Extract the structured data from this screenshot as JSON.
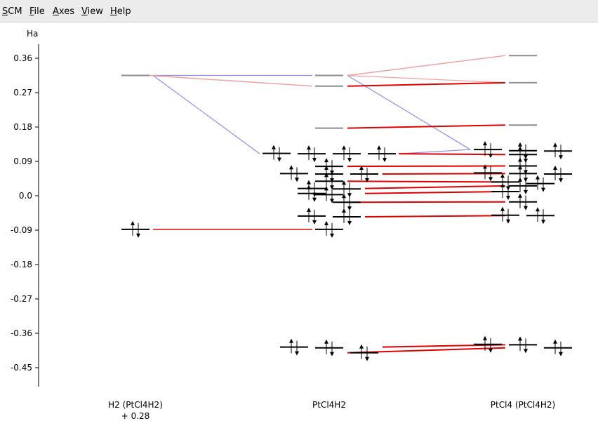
{
  "menu": {
    "items": [
      "SCM",
      "File",
      "Axes",
      "View",
      "Help"
    ]
  },
  "colors": {
    "energy_line": "#000000",
    "gray_line": "#8c8c8c",
    "red_line": "#e00000",
    "pink_line": "#f2a0a0",
    "blue_line": "#8c8cf0"
  },
  "chart_data": {
    "type": "energy-level diagram",
    "ylabel": "Ha",
    "y_ticks": [
      "0.36",
      "0.27",
      "0.18",
      "0.09",
      "0.0",
      "-0.09",
      "-0.18",
      "-0.27",
      "-0.36",
      "-0.45"
    ],
    "ylim": [
      -0.5,
      0.43
    ],
    "columns": [
      {
        "label": "H2 (PtCl4H2)",
        "sublabel": "+ 0.28"
      },
      {
        "label": "PtCl4H2",
        "sublabel": ""
      },
      {
        "label": "PtCl4 (PtCl4H2)",
        "sublabel": ""
      }
    ],
    "levels": {
      "h2": [
        {
          "e": 0.315,
          "occ": 0
        },
        {
          "e": -0.088,
          "occ": 2
        }
      ],
      "pt_complex": [
        {
          "e": 0.315,
          "occ": 0
        },
        {
          "e": 0.287,
          "occ": 0
        },
        {
          "e": 0.177,
          "occ": 0
        },
        {
          "e": 0.111,
          "occ": 2
        },
        {
          "e": 0.11,
          "occ": 2
        },
        {
          "e": 0.11,
          "occ": 2
        },
        {
          "e": 0.11,
          "occ": 2
        },
        {
          "e": 0.077,
          "occ": 2
        },
        {
          "e": 0.058,
          "occ": 2
        },
        {
          "e": 0.057,
          "occ": 2
        },
        {
          "e": 0.057,
          "occ": 2
        },
        {
          "e": 0.038,
          "occ": 2
        },
        {
          "e": 0.019,
          "occ": 2
        },
        {
          "e": 0.018,
          "occ": 2
        },
        {
          "e": 0.006,
          "occ": 2
        },
        {
          "e": 0.003,
          "occ": 2
        },
        {
          "e": -0.017,
          "occ": 2
        },
        {
          "e": -0.053,
          "occ": 2
        },
        {
          "e": -0.055,
          "occ": 2
        },
        {
          "e": -0.088,
          "occ": 2
        },
        {
          "e": -0.396,
          "occ": 2
        },
        {
          "e": -0.398,
          "occ": 2
        },
        {
          "e": -0.411,
          "occ": 2
        }
      ],
      "ptcl4": [
        {
          "e": 0.367,
          "occ": 0
        },
        {
          "e": 0.296,
          "occ": 0
        },
        {
          "e": 0.185,
          "occ": 0
        },
        {
          "e": 0.121,
          "occ": 2
        },
        {
          "e": 0.118,
          "occ": 2
        },
        {
          "e": 0.117,
          "occ": 2
        },
        {
          "e": 0.108,
          "occ": 2
        },
        {
          "e": 0.078,
          "occ": 2
        },
        {
          "e": 0.06,
          "occ": 2
        },
        {
          "e": 0.058,
          "occ": 2
        },
        {
          "e": 0.057,
          "occ": 2
        },
        {
          "e": 0.036,
          "occ": 2
        },
        {
          "e": 0.032,
          "occ": 2
        },
        {
          "e": 0.026,
          "occ": 2
        },
        {
          "e": 0.011,
          "occ": 2
        },
        {
          "e": -0.016,
          "occ": 2
        },
        {
          "e": -0.051,
          "occ": 2
        },
        {
          "e": -0.052,
          "occ": 2
        },
        {
          "e": -0.389,
          "occ": 2
        },
        {
          "e": -0.39,
          "occ": 2
        },
        {
          "e": -0.398,
          "occ": 2
        }
      ]
    },
    "connections": {
      "blue": [
        [
          0.315,
          0.11
        ],
        [
          0.315,
          0.315
        ],
        [
          0.315,
          0.121
        ],
        [
          0.11,
          0.121
        ]
      ],
      "pink": [
        [
          0.315,
          0.287
        ],
        [
          0.315,
          0.367
        ],
        [
          0.315,
          0.296
        ]
      ],
      "red": [
        [
          -0.088,
          -0.088
        ],
        [
          0.287,
          0.296
        ],
        [
          0.177,
          0.185
        ],
        [
          0.11,
          0.108
        ],
        [
          0.077,
          0.078
        ],
        [
          0.057,
          0.058
        ],
        [
          0.038,
          0.036
        ],
        [
          0.019,
          0.026
        ],
        [
          0.006,
          0.011
        ],
        [
          -0.017,
          -0.016
        ],
        [
          -0.055,
          -0.052
        ],
        [
          -0.396,
          -0.39
        ],
        [
          -0.411,
          -0.398
        ]
      ]
    }
  }
}
